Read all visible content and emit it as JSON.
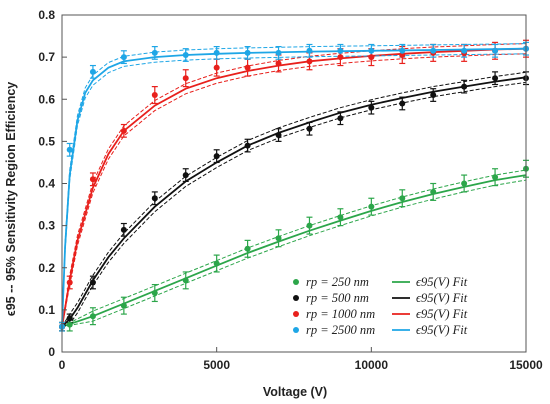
{
  "chart_data": {
    "type": "scatter",
    "xlabel": "Voltage (V)",
    "ylabel": "ϵ95 -- 95% Sensitivity Region Efficiency",
    "xlim": [
      0,
      15000
    ],
    "ylim": [
      0,
      0.8
    ],
    "x_ticks": [
      "0",
      "5000",
      "10000",
      "15000"
    ],
    "y_ticks": [
      "0",
      "0.1",
      "0.2",
      "0.3",
      "0.4",
      "0.5",
      "0.6",
      "0.7",
      "0.8"
    ],
    "grid": false,
    "legend_position": "bottom-right",
    "fit_legend_label": "ϵ95(V) Fit",
    "series": [
      {
        "name": "rp = 250 nm",
        "color": "#2ca64a",
        "points": [
          [
            0,
            0.06,
            0.01
          ],
          [
            250,
            0.065,
            0.015
          ],
          [
            1000,
            0.085,
            0.02
          ],
          [
            2000,
            0.11,
            0.02
          ],
          [
            3000,
            0.14,
            0.02
          ],
          [
            4000,
            0.17,
            0.02
          ],
          [
            5000,
            0.21,
            0.02
          ],
          [
            6000,
            0.245,
            0.02
          ],
          [
            7000,
            0.27,
            0.02
          ],
          [
            8000,
            0.3,
            0.02
          ],
          [
            9000,
            0.32,
            0.02
          ],
          [
            10000,
            0.345,
            0.02
          ],
          [
            11000,
            0.365,
            0.02
          ],
          [
            12000,
            0.38,
            0.02
          ],
          [
            13000,
            0.4,
            0.02
          ],
          [
            14000,
            0.415,
            0.02
          ],
          [
            15000,
            0.435,
            0.02
          ]
        ],
        "fit": [
          [
            0,
            0.06
          ],
          [
            1000,
            0.085
          ],
          [
            2000,
            0.115
          ],
          [
            3000,
            0.145
          ],
          [
            4000,
            0.175
          ],
          [
            5000,
            0.205
          ],
          [
            6000,
            0.235
          ],
          [
            7000,
            0.262
          ],
          [
            8000,
            0.288
          ],
          [
            9000,
            0.312
          ],
          [
            10000,
            0.335
          ],
          [
            11000,
            0.356
          ],
          [
            12000,
            0.375
          ],
          [
            13000,
            0.392
          ],
          [
            14000,
            0.408
          ],
          [
            15000,
            0.42
          ]
        ]
      },
      {
        "name": "rp = 500 nm",
        "color": "#111111",
        "points": [
          [
            0,
            0.06,
            0.01
          ],
          [
            250,
            0.08,
            0.01
          ],
          [
            1000,
            0.165,
            0.015
          ],
          [
            2000,
            0.29,
            0.015
          ],
          [
            3000,
            0.365,
            0.015
          ],
          [
            4000,
            0.42,
            0.015
          ],
          [
            5000,
            0.465,
            0.015
          ],
          [
            6000,
            0.49,
            0.015
          ],
          [
            7000,
            0.515,
            0.015
          ],
          [
            8000,
            0.53,
            0.015
          ],
          [
            9000,
            0.555,
            0.015
          ],
          [
            10000,
            0.58,
            0.015
          ],
          [
            11000,
            0.59,
            0.015
          ],
          [
            12000,
            0.61,
            0.015
          ],
          [
            13000,
            0.63,
            0.015
          ],
          [
            14000,
            0.65,
            0.015
          ],
          [
            15000,
            0.65,
            0.015
          ]
        ],
        "fit": [
          [
            0,
            0.06
          ],
          [
            250,
            0.078
          ],
          [
            500,
            0.105
          ],
          [
            1000,
            0.17
          ],
          [
            1500,
            0.225
          ],
          [
            2000,
            0.27
          ],
          [
            3000,
            0.345
          ],
          [
            4000,
            0.405
          ],
          [
            5000,
            0.45
          ],
          [
            6000,
            0.49
          ],
          [
            7000,
            0.52
          ],
          [
            8000,
            0.545
          ],
          [
            9000,
            0.568
          ],
          [
            10000,
            0.587
          ],
          [
            11000,
            0.603
          ],
          [
            12000,
            0.618
          ],
          [
            13000,
            0.63
          ],
          [
            14000,
            0.642
          ],
          [
            15000,
            0.652
          ]
        ]
      },
      {
        "name": "rp = 1000 nm",
        "color": "#e8201c",
        "points": [
          [
            0,
            0.06,
            0.01
          ],
          [
            250,
            0.165,
            0.015
          ],
          [
            1000,
            0.41,
            0.015
          ],
          [
            2000,
            0.525,
            0.015
          ],
          [
            3000,
            0.61,
            0.02
          ],
          [
            4000,
            0.65,
            0.02
          ],
          [
            5000,
            0.675,
            0.02
          ],
          [
            6000,
            0.675,
            0.02
          ],
          [
            7000,
            0.685,
            0.02
          ],
          [
            8000,
            0.69,
            0.02
          ],
          [
            9000,
            0.7,
            0.02
          ],
          [
            10000,
            0.7,
            0.02
          ],
          [
            11000,
            0.705,
            0.02
          ],
          [
            12000,
            0.71,
            0.02
          ],
          [
            13000,
            0.71,
            0.02
          ],
          [
            14000,
            0.715,
            0.02
          ],
          [
            15000,
            0.72,
            0.02
          ]
        ],
        "fit": [
          [
            0,
            0.06
          ],
          [
            250,
            0.17
          ],
          [
            500,
            0.265
          ],
          [
            1000,
            0.39
          ],
          [
            1500,
            0.47
          ],
          [
            2000,
            0.525
          ],
          [
            3000,
            0.585
          ],
          [
            4000,
            0.625
          ],
          [
            5000,
            0.65
          ],
          [
            6000,
            0.667
          ],
          [
            7000,
            0.68
          ],
          [
            8000,
            0.69
          ],
          [
            9000,
            0.697
          ],
          [
            10000,
            0.703
          ],
          [
            11000,
            0.708
          ],
          [
            12000,
            0.712
          ],
          [
            13000,
            0.715
          ],
          [
            14000,
            0.718
          ],
          [
            15000,
            0.72
          ]
        ]
      },
      {
        "name": "rp = 2500 nm",
        "color": "#1ea6e6",
        "points": [
          [
            0,
            0.06,
            0.01
          ],
          [
            250,
            0.48,
            0.015
          ],
          [
            1000,
            0.665,
            0.015
          ],
          [
            2000,
            0.7,
            0.015
          ],
          [
            3000,
            0.71,
            0.015
          ],
          [
            4000,
            0.705,
            0.015
          ],
          [
            5000,
            0.71,
            0.015
          ],
          [
            6000,
            0.71,
            0.015
          ],
          [
            7000,
            0.71,
            0.015
          ],
          [
            8000,
            0.715,
            0.015
          ],
          [
            9000,
            0.715,
            0.015
          ],
          [
            10000,
            0.715,
            0.015
          ],
          [
            11000,
            0.715,
            0.015
          ],
          [
            12000,
            0.715,
            0.015
          ],
          [
            13000,
            0.715,
            0.015
          ],
          [
            14000,
            0.715,
            0.015
          ],
          [
            15000,
            0.72,
            0.015
          ]
        ],
        "fit": [
          [
            0,
            0.06
          ],
          [
            100,
            0.25
          ],
          [
            250,
            0.42
          ],
          [
            500,
            0.55
          ],
          [
            750,
            0.615
          ],
          [
            1000,
            0.645
          ],
          [
            1500,
            0.675
          ],
          [
            2000,
            0.69
          ],
          [
            3000,
            0.7
          ],
          [
            4000,
            0.705
          ],
          [
            5000,
            0.708
          ],
          [
            6000,
            0.71
          ],
          [
            8000,
            0.713
          ],
          [
            10000,
            0.715
          ],
          [
            12000,
            0.717
          ],
          [
            15000,
            0.72
          ]
        ]
      }
    ]
  }
}
